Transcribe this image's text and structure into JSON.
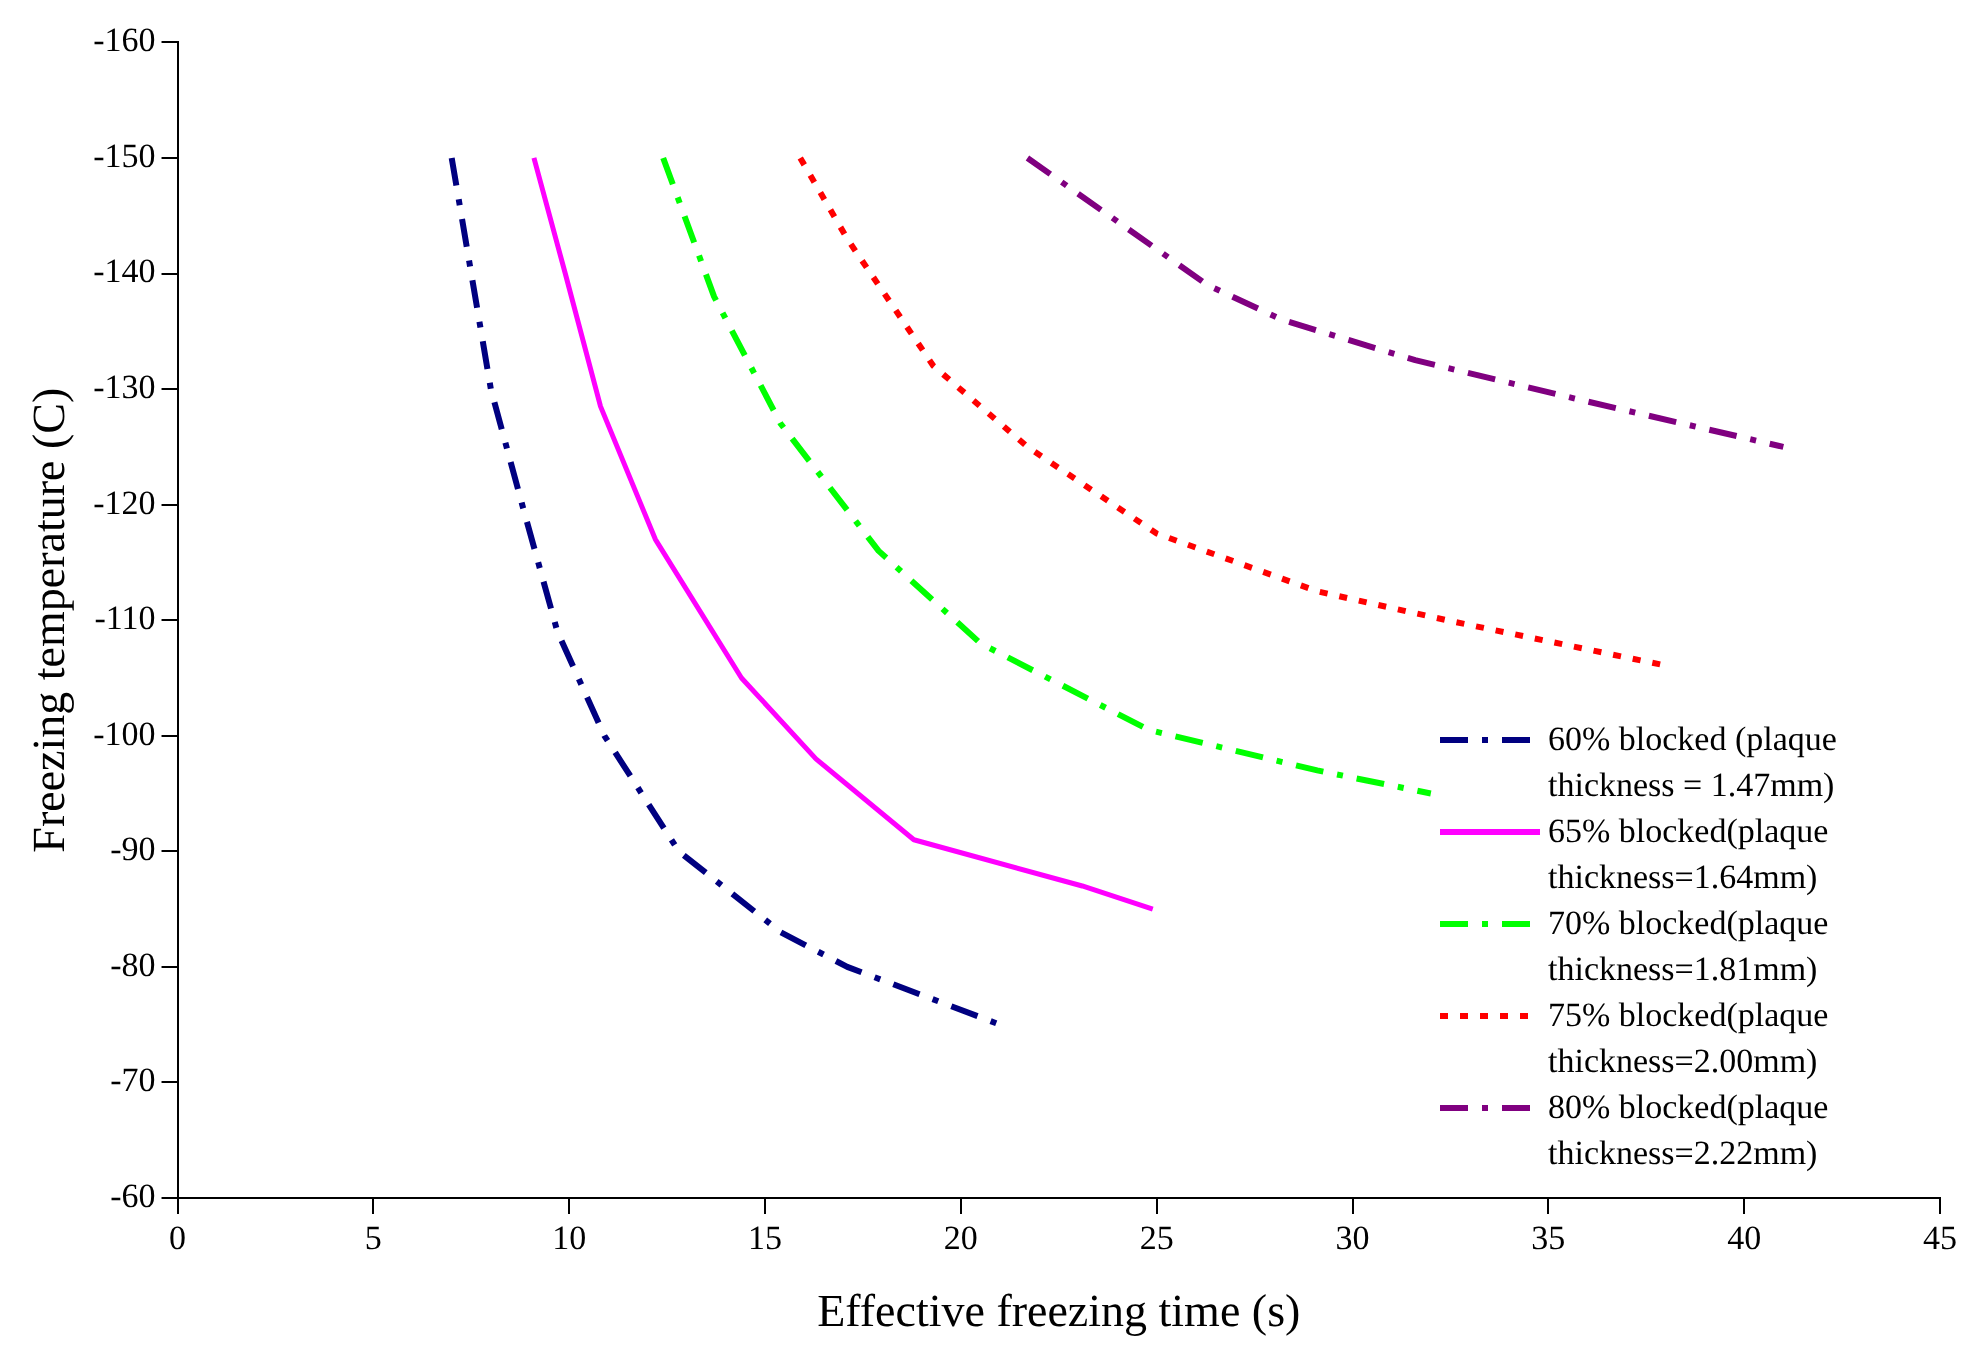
{
  "chart_data": {
    "type": "line",
    "xlabel": "Effective freezing time (s)",
    "ylabel": "Freezing temperature (C)",
    "xlim": [
      0,
      45
    ],
    "xticks": [
      0,
      5,
      10,
      15,
      20,
      25,
      30,
      35,
      40,
      45
    ],
    "ylim": [
      -60,
      -160
    ],
    "yticks": [
      -160,
      -150,
      -140,
      -130,
      -120,
      -110,
      -100,
      -90,
      -80,
      -70,
      -60
    ],
    "grid": false,
    "legend": "right",
    "marker": "none",
    "series": [
      {
        "name": "60% blocked (plaque thickness = 1.47mm)",
        "color": "#000080",
        "line_style": "dashed",
        "x": [
          7.0,
          7.5,
          8.0,
          8.8,
          9.7,
          10.9,
          12.8,
          15.4,
          17.1,
          21.0
        ],
        "values": [
          -150,
          -140,
          -130,
          -120,
          -109,
          -100,
          -90,
          -83,
          -80,
          -75
        ]
      },
      {
        "name": "65% blocked(plaque thickness=1.64mm)",
        "color": "#ff00ff",
        "line_style": "solid",
        "x": [
          9.1,
          9.9,
          10.8,
          12.2,
          14.4,
          16.3,
          18.8,
          23.1,
          24.9
        ],
        "values": [
          -150,
          -140,
          -128.5,
          -117,
          -105,
          -98,
          -91,
          -87,
          -85
        ]
      },
      {
        "name": "70% blocked(plaque thickness=1.81mm)",
        "color": "#00ff00",
        "line_style": "dashed",
        "x": [
          12.4,
          13.7,
          15.4,
          17.9,
          20.5,
          24.8,
          29.1,
          32.0
        ],
        "values": [
          -150,
          -138,
          -127,
          -116,
          -108,
          -100.5,
          -97,
          -95
        ]
      },
      {
        "name": "75% blocked(plaque thickness=2.00mm)",
        "color": "#ff0000",
        "line_style": "dotted",
        "x": [
          15.9,
          17.1,
          19.3,
          21.7,
          25.0,
          29.1,
          32.4,
          38.1
        ],
        "values": [
          -150,
          -143,
          -132,
          -125,
          -117.5,
          -112.5,
          -110,
          -106
        ]
      },
      {
        "name": "80% blocked(plaque thickness=2.22mm)",
        "color": "#800080",
        "line_style": "dashed",
        "x": [
          21.7,
          26.3,
          28.2,
          31.6,
          35.9,
          41.0
        ],
        "values": [
          -150,
          -139,
          -136,
          -132.5,
          -129,
          -125
        ]
      }
    ]
  }
}
